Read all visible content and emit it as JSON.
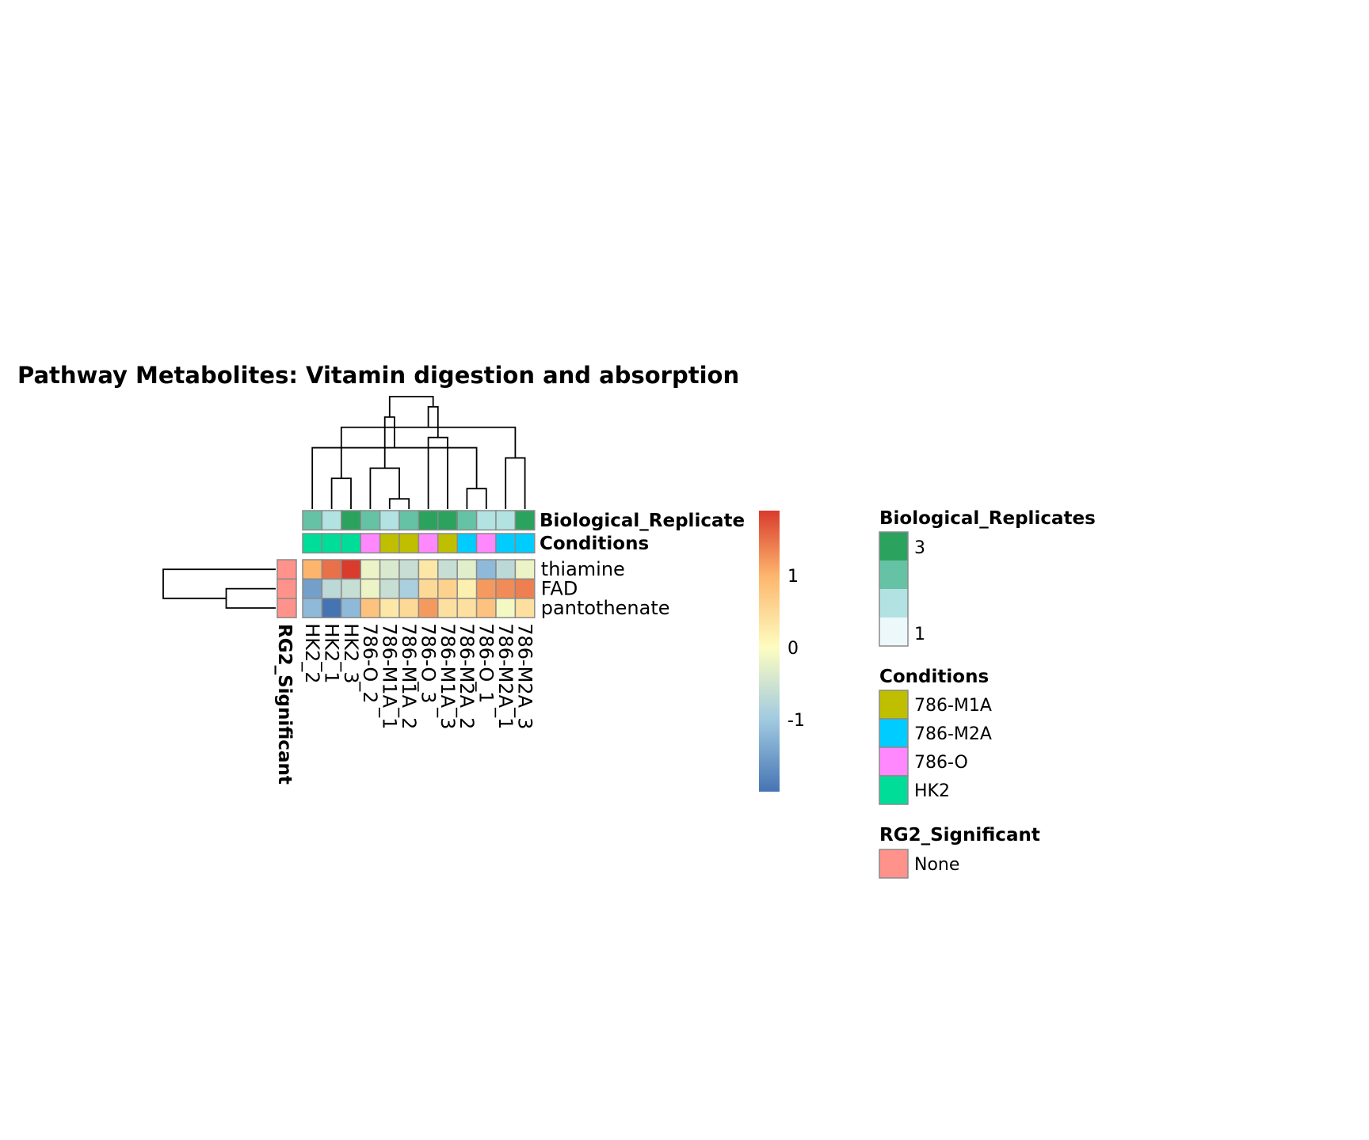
{
  "title": "Pathway  Metabolites:  Vitamin digestion and absorption",
  "chart_data": {
    "type": "heatmap",
    "title": "Pathway  Metabolites:  Vitamin digestion and absorption",
    "columns": [
      "HK2_2",
      "HK2_1",
      "HK2_3",
      "786-O_2",
      "786-M1A_1",
      "786-M1A_2",
      "786-O_3",
      "786-M1A_3",
      "786-M2A_2",
      "786-O_1",
      "786-M2A_1",
      "786-M2A_3"
    ],
    "rows": [
      "thiamine",
      "FAD",
      "pantothenate"
    ],
    "values": [
      [
        1.0,
        1.5,
        1.9,
        -0.2,
        -0.4,
        -0.6,
        0.3,
        -0.6,
        -0.3,
        -1.2,
        -0.7,
        -0.2
      ],
      [
        -1.5,
        -0.7,
        -0.6,
        -0.2,
        -0.6,
        -0.9,
        0.5,
        0.6,
        0.2,
        1.2,
        1.3,
        1.4
      ],
      [
        -1.2,
        -2.0,
        -1.2,
        0.8,
        0.3,
        0.5,
        1.2,
        0.4,
        0.4,
        0.8,
        -0.1,
        0.4
      ]
    ],
    "color_scale": {
      "breaks": [
        -2.0,
        -1.0,
        0.0,
        1.0,
        1.9
      ],
      "colors": [
        "#4574b3",
        "#a1cae1",
        "#fdfdc0",
        "#fdb56d",
        "#d93b2d"
      ],
      "tick_labels": [
        "1",
        "0",
        "-1"
      ],
      "tick_values": [
        1,
        0,
        -1
      ]
    },
    "column_annotations": {
      "Biological_Replicates": [
        2,
        1,
        3,
        2,
        1,
        2,
        3,
        3,
        2,
        1,
        1,
        3
      ],
      "Conditions": [
        "HK2",
        "HK2",
        "HK2",
        "786-O",
        "786-M1A",
        "786-M1A",
        "786-O",
        "786-M1A",
        "786-M2A",
        "786-O",
        "786-M2A",
        "786-M2A"
      ]
    },
    "row_annotations": {
      "RG2_Significant": [
        "None",
        "None",
        "None"
      ]
    },
    "column_dendrogram": [
      [
        4,
        5
      ],
      [
        8,
        9
      ],
      [
        1,
        2
      ],
      [
        3,
        12
      ],
      [
        10,
        11
      ],
      [
        0,
        13
      ],
      [
        6,
        7
      ],
      [
        16,
        14
      ],
      [
        15,
        17
      ],
      [
        18,
        19
      ],
      [
        20,
        21
      ]
    ],
    "row_dendrogram": [
      [
        1,
        2
      ],
      [
        0,
        3
      ]
    ],
    "legends": {
      "Biological_Replicates": {
        "title": "Biological_Replicates",
        "labels": [
          "3",
          "1"
        ],
        "colors": [
          "#2ca25f",
          "#66c2a4",
          "#b2e2e2",
          "#edf8fb"
        ]
      },
      "Conditions": {
        "title": "Conditions",
        "items": [
          {
            "label": "786-M1A",
            "color": "#bfbf00"
          },
          {
            "label": "786-M2A",
            "color": "#00ccff"
          },
          {
            "label": "786-O",
            "color": "#ff88ff"
          },
          {
            "label": "HK2",
            "color": "#00dd99"
          }
        ]
      },
      "RG2_Significant": {
        "title": "RG2_Significant",
        "items": [
          {
            "label": "None",
            "color": "#ff928a"
          }
        ]
      }
    },
    "annotation_labels": {
      "replicates": "Biological_Replicate",
      "conditions": "Conditions",
      "rg2": "RG2_Significant"
    }
  }
}
